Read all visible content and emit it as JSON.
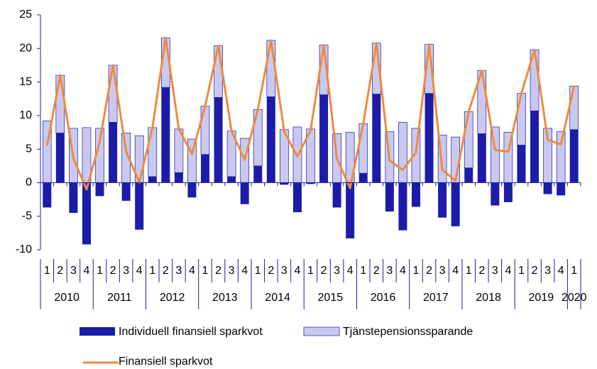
{
  "chart_data": {
    "type": "stacked_bar_line",
    "categories": [
      "1",
      "2",
      "3",
      "4",
      "1",
      "2",
      "3",
      "4",
      "1",
      "2",
      "3",
      "4",
      "1",
      "2",
      "3",
      "4",
      "1",
      "2",
      "3",
      "4",
      "1",
      "2",
      "3",
      "4",
      "1",
      "2",
      "3",
      "4",
      "1",
      "2",
      "3",
      "4",
      "1",
      "2",
      "3",
      "4",
      "1",
      "2",
      "3",
      "4",
      "1"
    ],
    "years": [
      "2010",
      "2011",
      "2012",
      "2013",
      "2014",
      "2015",
      "2016",
      "2017",
      "2018",
      "2019",
      "2020"
    ],
    "ylim": [
      -10,
      25
    ],
    "yticks": [
      -10,
      -5,
      0,
      5,
      10,
      15,
      20,
      25
    ],
    "series": [
      {
        "name": "Individuell finansiell sparkvot",
        "color": "#1c1ca8",
        "kind": "bar",
        "values": [
          -3.7,
          7.4,
          -4.5,
          -9.2,
          -2.0,
          9.0,
          -2.7,
          -7.0,
          0.9,
          14.2,
          1.5,
          -2.2,
          4.2,
          12.7,
          0.9,
          -3.2,
          2.5,
          12.8,
          -0.3,
          -4.4,
          -0.2,
          13.1,
          -3.7,
          -8.3,
          1.4,
          13.2,
          -4.3,
          -7.1,
          -3.6,
          13.3,
          -5.2,
          -6.5,
          2.2,
          7.3,
          -3.4,
          -2.9,
          5.6,
          10.7,
          -1.7,
          -1.9,
          7.9
        ]
      },
      {
        "name": "Tjänstepensionssparande",
        "color": "#c9c9f0",
        "kind": "bar",
        "values": [
          9.2,
          8.6,
          8.1,
          8.2,
          8.1,
          8.5,
          7.4,
          7.0,
          7.3,
          7.4,
          6.5,
          6.5,
          7.2,
          7.7,
          6.8,
          6.6,
          8.4,
          8.4,
          7.9,
          8.3,
          8.0,
          7.4,
          7.3,
          7.5,
          7.4,
          7.6,
          7.6,
          9.0,
          8.1,
          7.3,
          7.1,
          6.8,
          8.4,
          9.4,
          8.3,
          7.5,
          7.7,
          9.1,
          8.1,
          7.6,
          6.5
        ]
      },
      {
        "name": "Finansiell sparkvot",
        "color": "#ef8a3c",
        "kind": "line",
        "values": [
          5.5,
          16.0,
          3.6,
          -1.0,
          6.1,
          17.5,
          4.7,
          0.0,
          8.2,
          21.6,
          8.0,
          4.3,
          11.4,
          20.4,
          7.7,
          3.4,
          10.9,
          21.2,
          7.6,
          3.9,
          7.8,
          20.5,
          3.6,
          -0.8,
          8.8,
          20.8,
          3.3,
          1.9,
          4.5,
          20.6,
          1.9,
          0.3,
          10.6,
          16.7,
          4.9,
          4.6,
          13.3,
          19.8,
          6.4,
          5.7,
          14.4
        ]
      }
    ]
  }
}
